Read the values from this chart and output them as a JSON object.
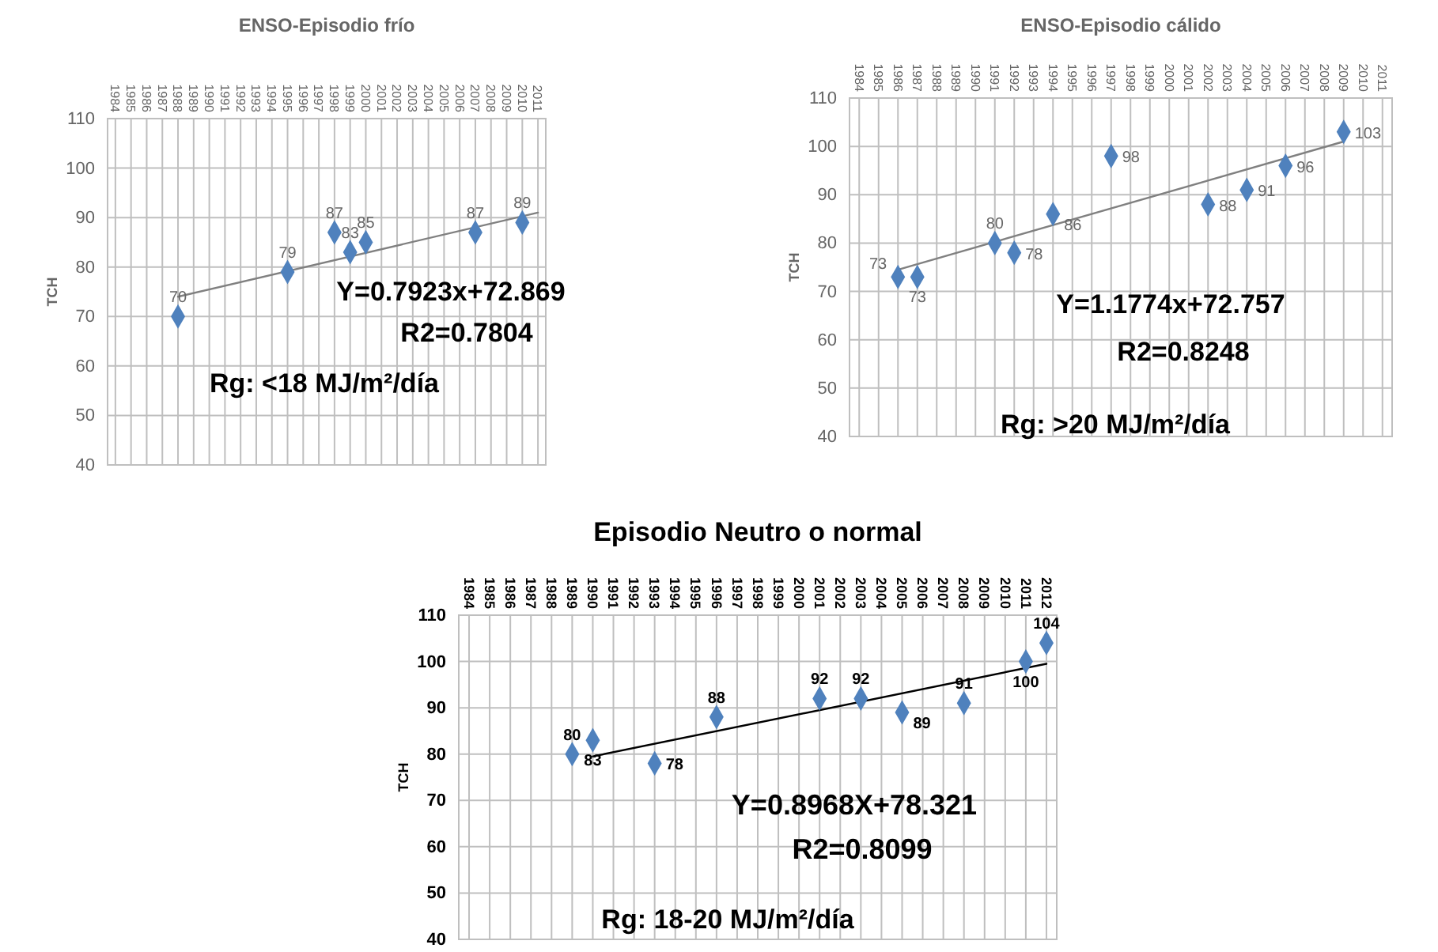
{
  "chart_data": [
    {
      "type": "scatter",
      "title": "ENSO-Episodio frío",
      "ylabel": "TCH",
      "xlim": [
        1983.5,
        2011.5
      ],
      "xticks": [
        1984,
        1985,
        1986,
        1987,
        1988,
        1989,
        1990,
        1991,
        1992,
        1993,
        1994,
        1995,
        1996,
        1997,
        1998,
        1999,
        2000,
        2001,
        2002,
        2003,
        2004,
        2005,
        2006,
        2007,
        2008,
        2009,
        2010,
        2011
      ],
      "ylim": [
        40,
        110
      ],
      "yticks": [
        40,
        50,
        60,
        70,
        80,
        90,
        100,
        110
      ],
      "grid": true,
      "series": [
        {
          "marker": "diamond",
          "color": "#4f81bd",
          "x": [
            1988,
            1995,
            1998,
            1999,
            2000,
            2007,
            2010
          ],
          "values": [
            70,
            79,
            87,
            83,
            85,
            87,
            89
          ],
          "value_labels": [
            "70",
            "79",
            "87",
            "83",
            "85",
            "87",
            "89"
          ]
        },
        {
          "type": "line",
          "color": "#808080",
          "x": [
            1988,
            2011
          ],
          "values": [
            74,
            91
          ]
        }
      ],
      "annotations": [
        "Y=0.7923x+72.869",
        "R2=0.7804",
        "Rg:  <18 MJ/m²/día"
      ]
    },
    {
      "type": "scatter",
      "title": "ENSO-Episodio cálido",
      "ylabel": "TCH",
      "xlim": [
        1983.5,
        2011.5
      ],
      "xticks": [
        1984,
        1985,
        1986,
        1987,
        1988,
        1989,
        1990,
        1991,
        1992,
        1993,
        1994,
        1995,
        1996,
        1997,
        1998,
        1999,
        2000,
        2001,
        2002,
        2003,
        2004,
        2005,
        2006,
        2007,
        2008,
        2009,
        2010,
        2011
      ],
      "ylim": [
        40,
        110
      ],
      "yticks": [
        40,
        50,
        60,
        70,
        80,
        90,
        100,
        110
      ],
      "grid": true,
      "series": [
        {
          "marker": "diamond",
          "color": "#4f81bd",
          "x": [
            1986,
            1987,
            1991,
            1992,
            1994,
            1997,
            2002,
            2004,
            2006,
            2009
          ],
          "values": [
            73,
            73,
            80,
            78,
            86,
            98,
            88,
            91,
            96,
            103
          ],
          "value_labels": [
            "73",
            "73",
            "80",
            "78",
            "86",
            "98",
            "88",
            "91",
            "96",
            "103"
          ]
        },
        {
          "type": "line",
          "color": "#808080",
          "x": [
            1986,
            2009
          ],
          "values": [
            74.5,
            101
          ]
        }
      ],
      "annotations": [
        "Y=1.1774x+72.757",
        "R2=0.8248",
        "Rg:  >20 MJ/m²/día"
      ]
    },
    {
      "type": "scatter",
      "title": "Episodio Neutro o normal",
      "ylabel": "TCH",
      "xlim": [
        1983.5,
        2012.5
      ],
      "xticks": [
        1984,
        1985,
        1986,
        1987,
        1988,
        1989,
        1990,
        1991,
        1992,
        1993,
        1994,
        1995,
        1996,
        1997,
        1998,
        1999,
        2000,
        2001,
        2002,
        2003,
        2004,
        2005,
        2006,
        2007,
        2008,
        2009,
        2010,
        2011,
        2012
      ],
      "ylim": [
        40,
        110
      ],
      "yticks": [
        40,
        50,
        60,
        70,
        80,
        90,
        100,
        110
      ],
      "grid": true,
      "series": [
        {
          "marker": "diamond",
          "color": "#4f81bd",
          "x": [
            1989,
            1990,
            1993,
            1996,
            2001,
            2003,
            2005,
            2008,
            2011,
            2012
          ],
          "values": [
            80,
            83,
            78,
            88,
            92,
            92,
            89,
            91,
            100,
            104
          ],
          "value_labels": [
            "80",
            "83",
            "78",
            "88",
            "92",
            "92",
            "89",
            "91",
            "100",
            "104"
          ]
        },
        {
          "type": "line",
          "color": "#000000",
          "x": [
            1990,
            2012
          ],
          "values": [
            79.5,
            99.5
          ]
        }
      ],
      "annotations": [
        "Y=0.8968X+78.321",
        "R2=0.8099",
        "Rg: 18-20 MJ/m²/día"
      ]
    }
  ]
}
